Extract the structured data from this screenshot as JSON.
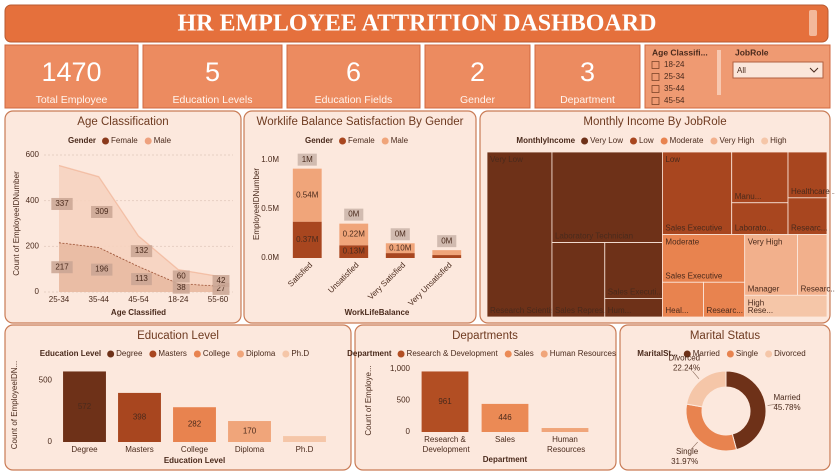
{
  "header": {
    "title": "HR EMPLOYEE ATTRITION DASHBOARD"
  },
  "kpis": [
    {
      "value": 1470,
      "label": "Total Employee"
    },
    {
      "value": 5,
      "label": "Education Levels"
    },
    {
      "value": 6,
      "label": "Education Fields"
    },
    {
      "value": 2,
      "label": "Gender"
    },
    {
      "value": 3,
      "label": "Department"
    }
  ],
  "slicers": {
    "age": {
      "title": "Age Classifi...",
      "options": [
        "18-24",
        "25-34",
        "35-44",
        "45-54"
      ]
    },
    "jobrole": {
      "title": "JobRole",
      "selected": "All"
    }
  },
  "chart_data": [
    {
      "type": "area",
      "stacked": true,
      "title": "Age Classification",
      "legend_title": "Gender",
      "categories": [
        "25-34",
        "35-44",
        "45-54",
        "18-24",
        "55-60"
      ],
      "series": [
        {
          "name": "Female",
          "color": "#8b3a1c",
          "values": [
            217,
            196,
            113,
            38,
            27
          ]
        },
        {
          "name": "Male",
          "color": "#eea17e",
          "values": [
            337,
            309,
            132,
            60,
            42
          ]
        }
      ],
      "ylim": [
        0,
        600
      ],
      "yticks": [
        0,
        200,
        400,
        600
      ],
      "grid": true,
      "y_label": "Count of EmployeeIDNumber",
      "x_label": "Age Classified"
    },
    {
      "type": "bar",
      "stacked": true,
      "title": "Worklife Balance Satisfaction By Gender",
      "legend_title": "Gender",
      "categories": [
        "Satisfied",
        "Unsatisfied",
        "Very Satisfied",
        "Very Unsatisfied"
      ],
      "series": [
        {
          "name": "Female",
          "color": "#a8461f",
          "values": [
            370000,
            130000,
            50000,
            30000
          ],
          "value_labels": [
            "0.37M",
            "0.13M",
            null,
            null
          ]
        },
        {
          "name": "Male",
          "color": "#f0a57a",
          "values": [
            540000,
            220000,
            100000,
            50000
          ],
          "value_labels": [
            "0.54M",
            "0.22M",
            "0.10M",
            null
          ]
        }
      ],
      "total_labels": [
        "1M",
        "0M",
        "0M",
        "0M"
      ],
      "ylim": [
        0,
        1100000
      ],
      "yticks": [
        {
          "value": 0,
          "label": "0.0M"
        },
        {
          "value": 500000,
          "label": "0.5M"
        },
        {
          "value": 1000000,
          "label": "1.0M"
        }
      ],
      "grid": false,
      "y_label": "EmployeeIDNumber",
      "x_label": "WorkLifeBalance"
    },
    {
      "type": "treemap",
      "title": "Monthly Income By JobRole",
      "legend_title": "MonthlyIncome",
      "groups": [
        {
          "name": "Very Low",
          "color": "#6e3118",
          "children": [
            {
              "name": "Research Scientist",
              "value": 150
            },
            {
              "name": "Laboratory Technician",
              "value": 140
            },
            {
              "name": "Sales Repres...",
              "value": 55
            },
            {
              "name": "Sales Executi...",
              "value": 45
            },
            {
              "name": "Hum...",
              "value": 15
            }
          ]
        },
        {
          "name": "Low",
          "color": "#a8461f",
          "children": [
            {
              "name": "Sales Executive",
              "value": 80
            },
            {
              "name": "Manu...",
              "value": 40
            },
            {
              "name": "Laborato...",
              "value": 25
            },
            {
              "name": "Healthcare ...",
              "value": 25
            },
            {
              "name": "Researc...",
              "value": 20
            }
          ]
        },
        {
          "name": "Moderate",
          "color": "#e8834f",
          "children": [
            {
              "name": "Sales Executive",
              "value": 55
            },
            {
              "name": "Heal...",
              "value": 20
            },
            {
              "name": "Researc...",
              "value": 20
            }
          ]
        },
        {
          "name": "Very High",
          "color": "#f2b08c",
          "children": [
            {
              "name": "Manager",
              "value": 45
            },
            {
              "name": "Researc...",
              "value": 25
            }
          ]
        },
        {
          "name": "High",
          "color": "#f5c6a8",
          "children": [
            {
              "name": "Rese...",
              "value": 25
            }
          ]
        }
      ]
    },
    {
      "type": "bar",
      "title": "Education Level",
      "legend_title": "Education Level",
      "categories": [
        "Degree",
        "Masters",
        "College",
        "Diploma",
        "Ph.D"
      ],
      "values": [
        572,
        398,
        282,
        170,
        48
      ],
      "colors": [
        "#6e3118",
        "#a8461f",
        "#e8834f",
        "#f0a57a",
        "#f5c6a8"
      ],
      "ylim": [
        0,
        600
      ],
      "yticks": [
        0,
        500
      ],
      "grid": false,
      "y_label": "Count of EmployeeIDN...",
      "x_label": "Education Level"
    },
    {
      "type": "bar",
      "title": "Departments",
      "legend_title": "Department",
      "categories": [
        "Research & Development",
        "Sales",
        "Human Resources"
      ],
      "values": [
        961,
        446,
        63
      ],
      "colors": [
        "#b24e23",
        "#eb8a55",
        "#f0a57a"
      ],
      "ylim": [
        0,
        1000
      ],
      "yticks": [
        0,
        500,
        {
          "value": 1000,
          "label": "1,000"
        }
      ],
      "grid": false,
      "y_label": "Count of Employe...",
      "x_label": "Department"
    },
    {
      "type": "donut",
      "title": "Marital Status",
      "legend_title": "MaritalSt...",
      "categories": [
        "Married",
        "Single",
        "Divorced"
      ],
      "values": [
        45.78,
        31.97,
        22.24
      ],
      "value_labels": [
        "45.78%",
        "31.97%",
        "22.24%"
      ],
      "colors": [
        "#6e3118",
        "#e8834f",
        "#f5c6a8"
      ]
    }
  ]
}
